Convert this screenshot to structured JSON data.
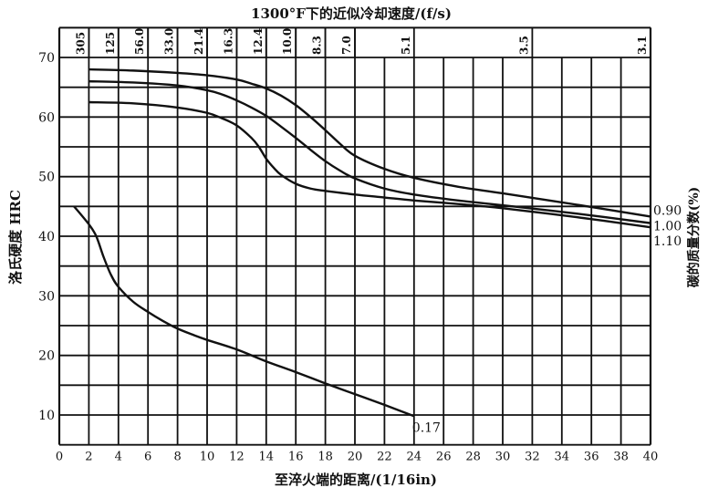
{
  "chart_data": {
    "type": "line",
    "top_axis_title": "1300°F下的近似冷却速度/(f/s)",
    "xlabel": "至淬火端的距离/(1/16in)",
    "ylabel": "洛氏硬度   HRC",
    "right_label": "碳的质量分数(%)",
    "xlim": [
      0,
      40
    ],
    "ylim": [
      5,
      75
    ],
    "x_ticks": [
      0,
      2,
      4,
      6,
      8,
      10,
      12,
      14,
      16,
      18,
      20,
      22,
      24,
      26,
      28,
      30,
      32,
      34,
      36,
      38,
      40
    ],
    "y_ticks": [
      10,
      20,
      30,
      40,
      50,
      60,
      70
    ],
    "grid": true,
    "cooling_rates": [
      {
        "x": 2,
        "label": "305"
      },
      {
        "x": 4,
        "label": "125"
      },
      {
        "x": 6,
        "label": "56.0"
      },
      {
        "x": 8,
        "label": "33.0"
      },
      {
        "x": 10,
        "label": "21.4"
      },
      {
        "x": 12,
        "label": "16.3"
      },
      {
        "x": 14,
        "label": "12.4"
      },
      {
        "x": 16,
        "label": "10.0"
      },
      {
        "x": 18,
        "label": "8.3"
      },
      {
        "x": 20,
        "label": "7.0"
      },
      {
        "x": 24,
        "label": "5.1"
      },
      {
        "x": 32,
        "label": "3.5"
      },
      {
        "x": 40,
        "label": "3.1"
      }
    ],
    "series": [
      {
        "name": "0.90",
        "x": [
          2,
          5,
          8,
          10,
          12,
          13,
          14,
          15,
          16,
          17,
          18,
          19,
          20,
          22,
          24,
          27,
          30,
          35,
          40
        ],
        "y": [
          68,
          67.8,
          67.4,
          67,
          66.3,
          65.6,
          64.8,
          63.6,
          62,
          60,
          57.8,
          55.5,
          53.5,
          51.3,
          49.8,
          48.3,
          47.2,
          45.3,
          43.3
        ]
      },
      {
        "name": "1.00",
        "x": [
          2,
          5,
          8,
          10,
          11,
          12,
          13,
          14,
          15,
          16,
          17,
          18,
          19,
          20,
          22,
          24,
          27,
          30,
          35,
          40
        ],
        "y": [
          66,
          65.8,
          65.3,
          64.5,
          63.8,
          62.8,
          61.6,
          60.2,
          58.4,
          56.5,
          54.5,
          52.6,
          51,
          49.7,
          48,
          47,
          46,
          45.2,
          43.8,
          42.2
        ]
      },
      {
        "name": "1.10",
        "x": [
          2,
          5,
          8,
          10,
          11,
          12,
          13,
          13.5,
          14,
          14.5,
          15,
          16,
          17,
          18,
          20,
          22,
          24,
          27,
          30,
          35,
          40
        ],
        "y": [
          62.5,
          62.3,
          61.6,
          60.7,
          59.8,
          58.6,
          56.5,
          55,
          53,
          51.5,
          50.3,
          48.8,
          48,
          47.6,
          47,
          46.5,
          46,
          45.4,
          44.7,
          43.2,
          41.5
        ]
      },
      {
        "name": "0.17",
        "x": [
          1,
          2,
          2.5,
          3,
          3.5,
          4,
          5,
          6,
          7,
          8,
          9,
          10,
          12,
          14,
          16,
          18,
          20,
          22,
          24
        ],
        "y": [
          45,
          42,
          40,
          36.5,
          33.5,
          31.5,
          29,
          27.3,
          25.8,
          24.5,
          23.5,
          22.6,
          21,
          19,
          17.2,
          15.3,
          13.5,
          11.7,
          9.8
        ]
      }
    ]
  }
}
